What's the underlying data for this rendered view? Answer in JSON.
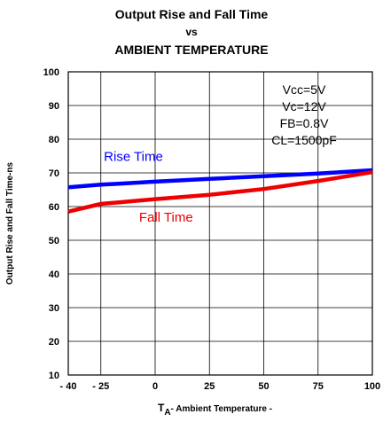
{
  "chart_data": {
    "type": "line",
    "title_lines": [
      "Output Rise and Fall Time",
      "vs",
      "AMBIENT TEMPERATURE"
    ],
    "xlabel": "T",
    "xlabel_sub": "A",
    "xlabel_rest": "- Ambient Temperature -",
    "ylabel": "Output Rise and Fall Time-ns",
    "xlim": [
      -40,
      100
    ],
    "ylim": [
      10,
      100
    ],
    "x_tick_labels": [
      "- 40",
      "- 25",
      "0",
      "25",
      "50",
      "75",
      "100"
    ],
    "x_tick_values": [
      -40,
      -25,
      0,
      25,
      50,
      75,
      100
    ],
    "y_tick_values": [
      10,
      20,
      30,
      40,
      50,
      60,
      70,
      80,
      90,
      100
    ],
    "y_tick_labels": [
      "10",
      "20",
      "30",
      "40",
      "50",
      "60",
      "70",
      "80",
      "90",
      "100"
    ],
    "grid": true,
    "conditions": [
      "Vcc=5V",
      "Vc=12V",
      "FB=0.8V",
      "CL=1500pF"
    ],
    "series": [
      {
        "name": "Rise Time",
        "color": "#0000ff",
        "x": [
          -40,
          -25,
          0,
          25,
          50,
          75,
          100
        ],
        "y": [
          65.7,
          66.5,
          67.4,
          68.2,
          69.0,
          69.8,
          70.8
        ]
      },
      {
        "name": "Fall Time",
        "color": "#ee0000",
        "x": [
          -40,
          -25,
          0,
          25,
          50,
          75,
          100
        ],
        "y": [
          58.5,
          60.8,
          62.2,
          63.5,
          65.2,
          67.6,
          70.2
        ]
      }
    ]
  }
}
